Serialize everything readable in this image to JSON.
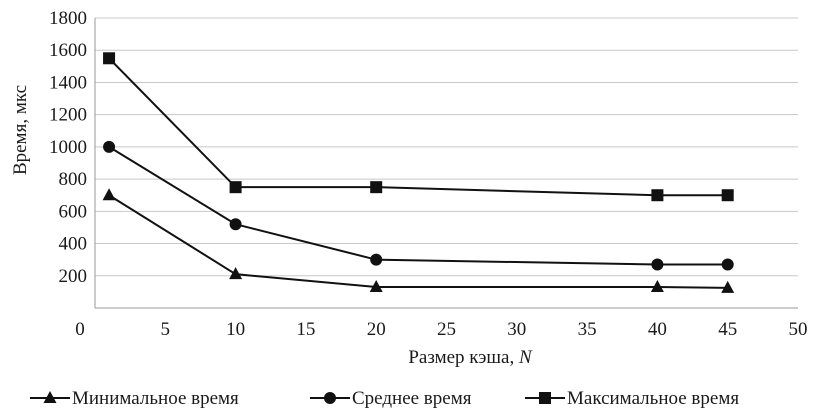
{
  "chart_data": {
    "type": "line",
    "xlabel": "Размер кэша, ",
    "xlabel_var": "N",
    "ylabel": "Время, мкс",
    "xlim": [
      0,
      50
    ],
    "ylim": [
      0,
      1800
    ],
    "xticks": [
      0,
      5,
      10,
      15,
      20,
      25,
      30,
      35,
      40,
      45,
      50
    ],
    "yticks": [
      200,
      400,
      600,
      800,
      1000,
      1200,
      1400,
      1600,
      1800
    ],
    "grid": true,
    "legend_position": "bottom",
    "x": [
      1,
      10,
      20,
      40,
      45
    ],
    "series": [
      {
        "name": "Минимальное время",
        "marker": "triangle",
        "values": [
          700,
          210,
          130,
          130,
          125
        ]
      },
      {
        "name": "Среднее время",
        "marker": "circle",
        "values": [
          1000,
          520,
          300,
          270,
          270
        ]
      },
      {
        "name": "Максимальное время",
        "marker": "square",
        "values": [
          1550,
          750,
          750,
          700,
          700
        ]
      }
    ]
  }
}
